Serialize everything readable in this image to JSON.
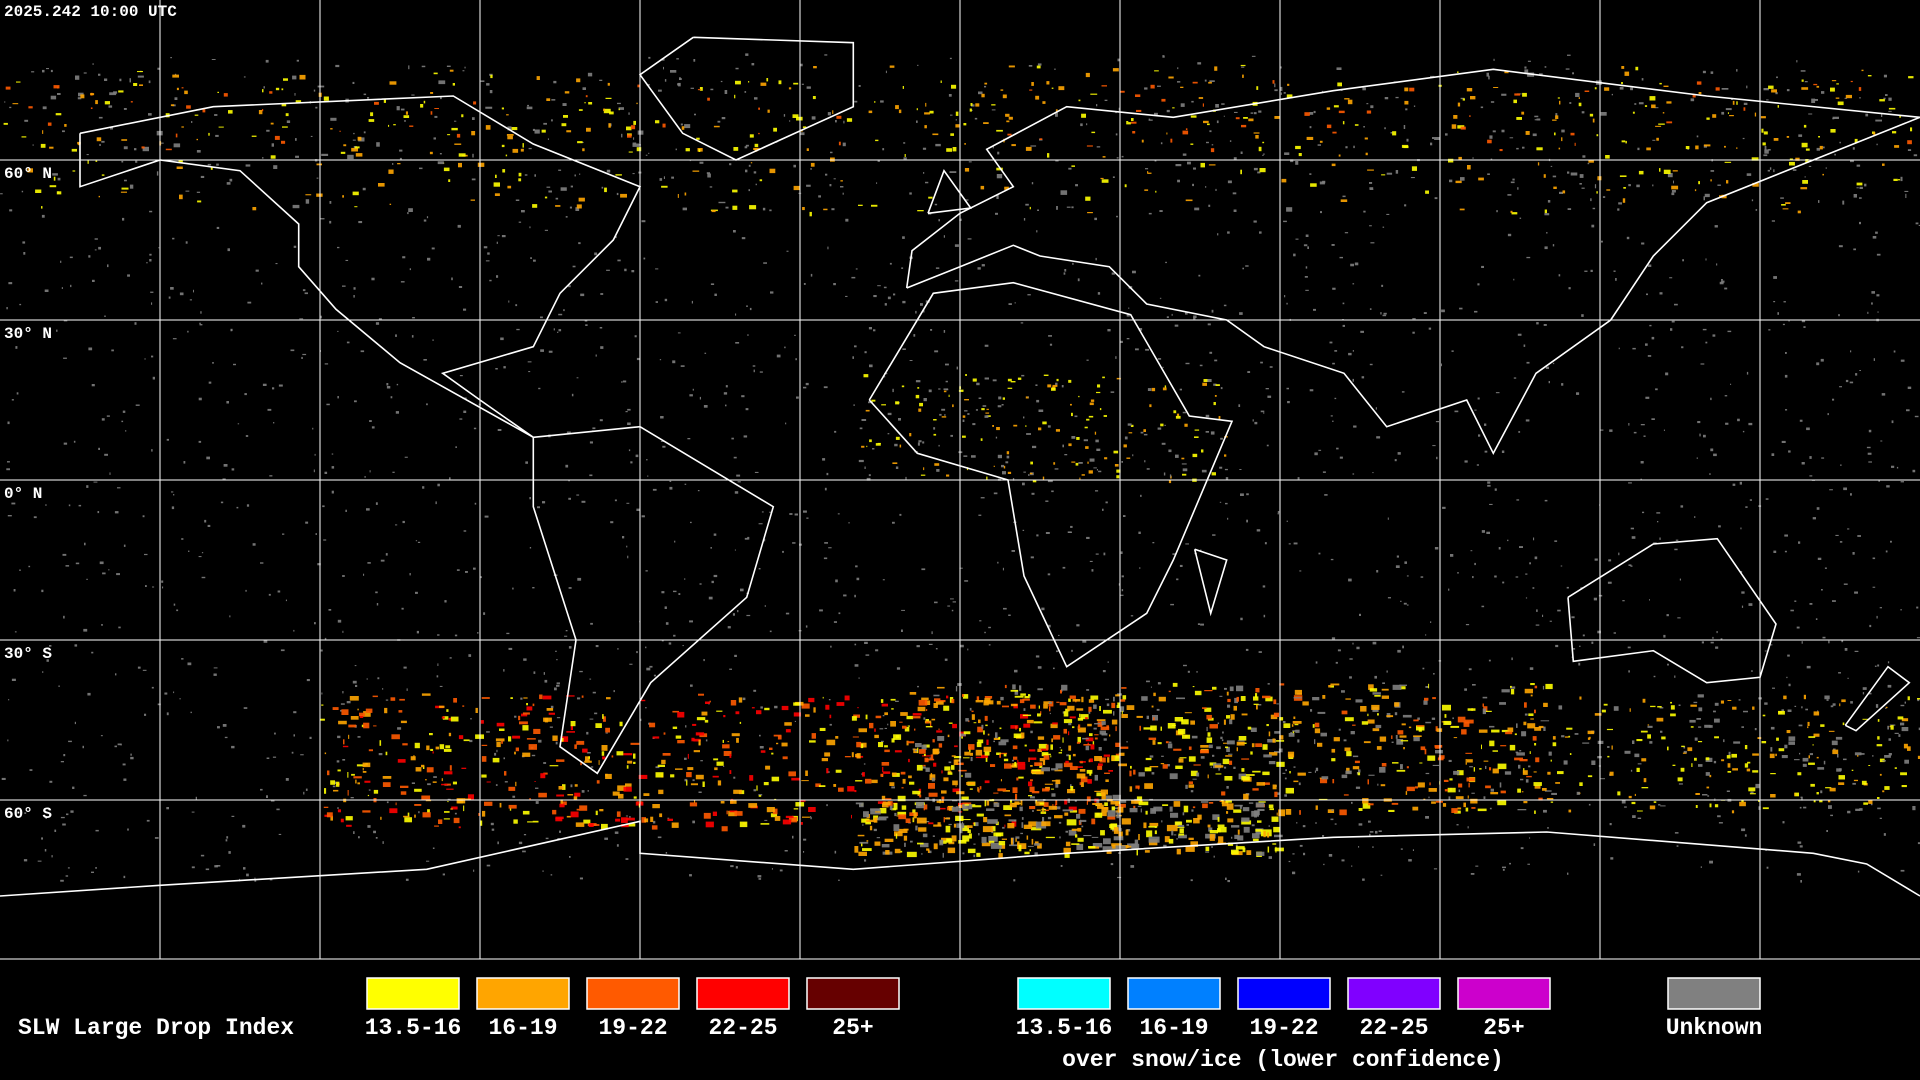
{
  "timestamp": "2025.242 10:00 UTC",
  "latitude_labels": [
    "60° N",
    "30° N",
    "0° N",
    "30° S",
    "60° S"
  ],
  "legend": {
    "title": "SLW Large Drop Index",
    "items": [
      {
        "label": "13.5-16",
        "color": "#ffff00"
      },
      {
        "label": "16-19",
        "color": "#ffa500"
      },
      {
        "label": "19-22",
        "color": "#ff5a00"
      },
      {
        "label": "22-25",
        "color": "#ff0000"
      },
      {
        "label": "25+",
        "color": "#660000"
      }
    ],
    "snow_items": [
      {
        "label": "13.5-16",
        "color": "#00ffff"
      },
      {
        "label": "16-19",
        "color": "#0080ff"
      },
      {
        "label": "19-22",
        "color": "#0000ff"
      },
      {
        "label": "22-25",
        "color": "#8000ff"
      },
      {
        "label": "25+",
        "color": "#cc00cc"
      }
    ],
    "snow_caption": "over snow/ice (lower confidence)",
    "unknown": {
      "label": "Unknown",
      "color": "#808080"
    }
  }
}
